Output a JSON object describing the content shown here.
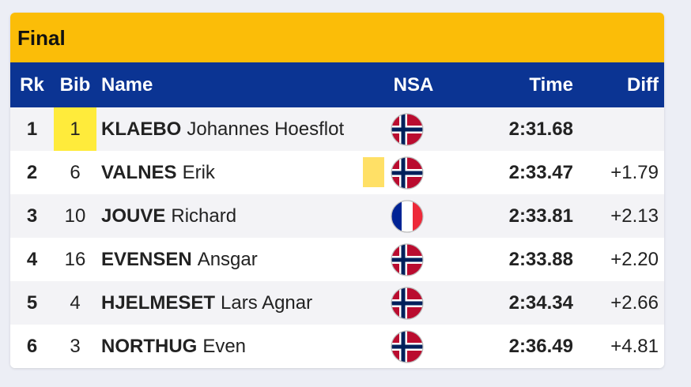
{
  "title": "Final",
  "table": {
    "headers": [
      "Rk",
      "Bib",
      "Name",
      "NSA",
      "Time",
      "Diff"
    ],
    "rows": [
      {
        "rank": 1,
        "bib": 1,
        "surname": "KLAEBO",
        "given": "Johannes Hoesflot",
        "time": "2:31.68"
      },
      {
        "rank": 2,
        "bib": 6,
        "surname": "VALNES",
        "given": "Erik",
        "time": "2:33.47",
        "diff": "+1.79"
      },
      {
        "rank": 3,
        "bib": 10,
        "surname": "JOUVE",
        "given": "Richard",
        "time": "2:33.81",
        "diff": "+2.13"
      },
      {
        "rank": 4,
        "bib": 16,
        "surname": "EVENSEN",
        "given": "Ansgar",
        "time": "2:33.88",
        "diff": "+2.20"
      },
      {
        "rank": 5,
        "bib": 4,
        "surname": "HJELMESET",
        "given": "Lars Agnar",
        "time": "2:34.34",
        "diff": "+2.66"
      },
      {
        "rank": 6,
        "bib": 3,
        "surname": "NORTHUG",
        "given": "Even",
        "time": "2:36.49",
        "diff": "+4.81"
      }
    ]
  }
}
